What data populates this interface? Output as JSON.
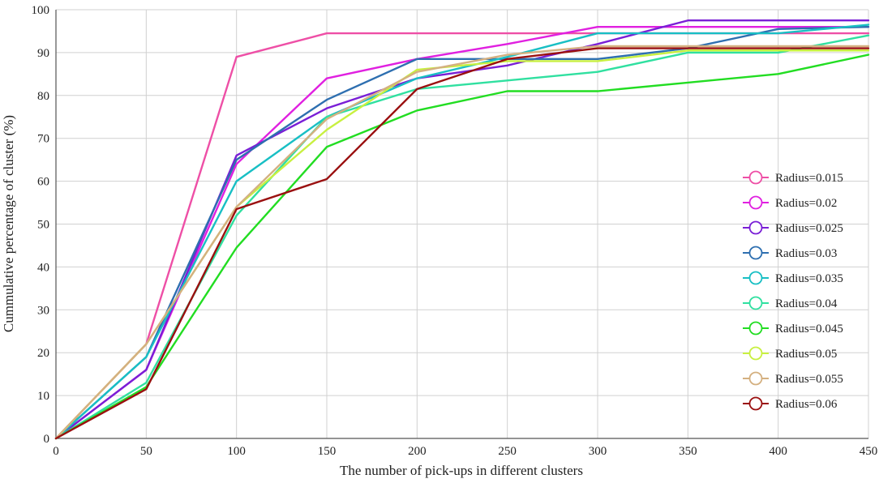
{
  "chart_data": {
    "type": "line",
    "title": "",
    "xlabel": "The number of pick-ups in different clusters",
    "ylabel": "Cummulative percentage of cluster (%)",
    "xlim": [
      0,
      450
    ],
    "ylim": [
      0,
      100
    ],
    "xticks": [
      0,
      50,
      100,
      150,
      200,
      250,
      300,
      350,
      400,
      450
    ],
    "yticks": [
      0,
      10,
      20,
      30,
      40,
      50,
      60,
      70,
      80,
      90,
      100
    ],
    "grid": true,
    "legend_position": "right",
    "x": [
      0,
      50,
      100,
      150,
      200,
      250,
      300,
      350,
      400,
      450
    ],
    "series": [
      {
        "name": "Radius=0.015",
        "color": "#ee4fa6",
        "values": [
          0,
          22,
          89,
          94.5,
          94.5,
          94.5,
          94.5,
          94.5,
          94.5,
          94.5
        ]
      },
      {
        "name": "Radius=0.02",
        "color": "#e020e0",
        "values": [
          0,
          16,
          64,
          84,
          88.5,
          92,
          96,
          96,
          96,
          96
        ]
      },
      {
        "name": "Radius=0.025",
        "color": "#7a1fd6",
        "values": [
          0,
          16,
          66,
          77,
          84,
          87,
          92,
          97.5,
          97.5,
          97.5
        ]
      },
      {
        "name": "Radius=0.03",
        "color": "#2e6fb0",
        "values": [
          0,
          19,
          65,
          79,
          88.5,
          88.5,
          88.5,
          91,
          95.5,
          96
        ]
      },
      {
        "name": "Radius=0.035",
        "color": "#18bfc4",
        "values": [
          0,
          19,
          60,
          75,
          84,
          89,
          94.5,
          94.5,
          94.5,
          96.5
        ]
      },
      {
        "name": "Radius=0.04",
        "color": "#30e0a0",
        "values": [
          0,
          13,
          52,
          75,
          81.5,
          83.5,
          85.5,
          90,
          90,
          94
        ]
      },
      {
        "name": "Radius=0.045",
        "color": "#22dd22",
        "values": [
          0,
          12,
          44.5,
          68,
          76.5,
          81,
          81,
          83,
          85,
          89.5
        ]
      },
      {
        "name": "Radius=0.05",
        "color": "#c8f040",
        "values": [
          0,
          22,
          54,
          72,
          86,
          88,
          88,
          90.5,
          90.5,
          90.5
        ]
      },
      {
        "name": "Radius=0.055",
        "color": "#d4b080",
        "values": [
          0,
          22,
          54,
          74.5,
          85.5,
          89.5,
          91.5,
          91.5,
          91.5,
          91.5
        ]
      },
      {
        "name": "Radius=0.06",
        "color": "#9a1010",
        "values": [
          0,
          11.5,
          53.5,
          60.5,
          81.5,
          88.5,
          91,
          91,
          91,
          91
        ]
      }
    ]
  }
}
